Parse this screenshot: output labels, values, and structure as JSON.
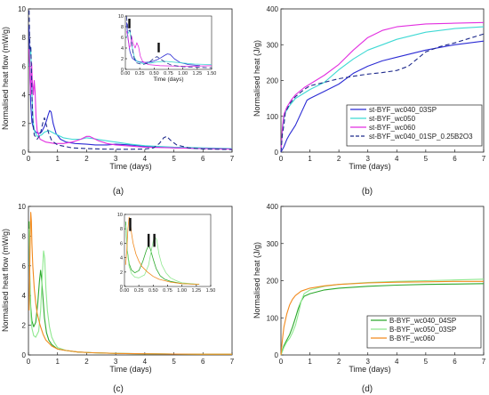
{
  "panels": [
    {
      "id": "a",
      "panel_label": "(a)",
      "chart_data": {
        "type": "line",
        "xlabel": "Time (days)",
        "ylabel": "Normalised heat flow (mW/g)",
        "xlim": [
          0,
          7
        ],
        "ylim": [
          0,
          10
        ],
        "xticks": [
          0,
          1,
          2,
          3,
          4,
          5,
          6,
          7
        ],
        "yticks": [
          0,
          2,
          4,
          6,
          8,
          10
        ],
        "series": [
          {
            "name": "st-BYF_wc040_03SP",
            "color": "#2b2bd4",
            "dash": "",
            "x": [
              0.02,
              0.05,
              0.08,
              0.12,
              0.18,
              0.25,
              0.35,
              0.45,
              0.55,
              0.62,
              0.68,
              0.73,
              0.78,
              0.85,
              0.95,
              1.1,
              1.3,
              1.6,
              2.0,
              2.3,
              2.7,
              3.0,
              3.5,
              4.0,
              5.0,
              6.0,
              7.0
            ],
            "y": [
              8.8,
              5.5,
              3.3,
              2.1,
              1.6,
              1.4,
              1.3,
              1.4,
              1.8,
              2.2,
              2.6,
              2.9,
              2.8,
              2.0,
              1.3,
              0.9,
              0.7,
              0.6,
              0.55,
              0.5,
              0.5,
              0.55,
              0.5,
              0.4,
              0.3,
              0.25,
              0.22
            ]
          },
          {
            "name": "st-BYF_wc050",
            "color": "#3fd9d4",
            "dash": "",
            "x": [
              0.02,
              0.05,
              0.08,
              0.1,
              0.13,
              0.16,
              0.2,
              0.3,
              0.45,
              0.55,
              0.7,
              0.9,
              1.2,
              1.5,
              1.8,
              2.0,
              2.2,
              2.5,
              3.0,
              3.5,
              4.0,
              5.0,
              6.0,
              7.0
            ],
            "y": [
              6.0,
              6.8,
              7.3,
              5.5,
              3.5,
              2.2,
              1.5,
              1.1,
              1.2,
              1.4,
              1.5,
              1.3,
              1.0,
              0.9,
              0.9,
              1.0,
              0.95,
              0.85,
              0.7,
              0.55,
              0.45,
              0.35,
              0.3,
              0.25
            ]
          },
          {
            "name": "st-BYF_wc060",
            "color": "#e22fe0",
            "dash": "",
            "x": [
              0.02,
              0.05,
              0.07,
              0.09,
              0.11,
              0.13,
              0.17,
              0.2,
              0.23,
              0.26,
              0.3,
              0.4,
              0.6,
              0.9,
              1.2,
              1.5,
              1.8,
              2.0,
              2.1,
              2.2,
              2.4,
              2.7,
              3.0,
              4.0,
              5.0,
              6.0,
              7.0
            ],
            "y": [
              7.2,
              5.8,
              4.0,
              4.5,
              6.2,
              5.0,
              4.0,
              5.0,
              4.2,
              2.5,
              1.5,
              0.9,
              0.7,
              0.6,
              0.6,
              0.7,
              0.9,
              1.1,
              1.1,
              1.0,
              0.8,
              0.6,
              0.5,
              0.35,
              0.3,
              0.25,
              0.22
            ]
          },
          {
            "name": "st-BYF_wc040_01SP_0.25B2O3",
            "color": "#1e2a8c",
            "dash": "5,3",
            "x": [
              0.02,
              0.04,
              0.06,
              0.08,
              0.1,
              0.12,
              0.15,
              0.2,
              0.3,
              0.4,
              0.5,
              0.55,
              0.6,
              0.7,
              0.8,
              1.0,
              1.5,
              2.0,
              2.5,
              3.0,
              3.5,
              4.0,
              4.3,
              4.5,
              4.65,
              4.75,
              4.9,
              5.1,
              5.5,
              6.0,
              7.0
            ],
            "y": [
              9.9,
              8.0,
              7.2,
              7.4,
              6.0,
              4.0,
              2.2,
              1.2,
              0.9,
              1.2,
              2.1,
              2.4,
              2.0,
              1.3,
              0.8,
              0.5,
              0.3,
              0.25,
              0.22,
              0.2,
              0.2,
              0.22,
              0.3,
              0.6,
              1.0,
              1.1,
              0.8,
              0.5,
              0.3,
              0.22,
              0.18
            ]
          }
        ],
        "inset": {
          "xlim": [
            0,
            1.5
          ],
          "ylim": [
            0,
            10
          ],
          "xticks": [
            0.0,
            0.25,
            0.5,
            0.75,
            1.0,
            1.25,
            1.5
          ],
          "yticks": [
            0,
            2,
            4,
            6,
            8,
            10
          ],
          "xtick_labels": [
            "0.00",
            "0.25",
            "0.50",
            "0.75",
            "1.00",
            "1.25",
            "1.50"
          ],
          "xlabel": "Time (days)",
          "markers": [
            0.07,
            0.58
          ]
        }
      }
    },
    {
      "id": "b",
      "panel_label": "(b)",
      "chart_data": {
        "type": "line",
        "xlabel": "Time (days)",
        "ylabel": "Normalised heat (J/g)",
        "xlim": [
          0,
          7
        ],
        "ylim": [
          0,
          400
        ],
        "xticks": [
          0,
          1,
          2,
          3,
          4,
          5,
          6,
          7
        ],
        "yticks": [
          0,
          100,
          200,
          300,
          400
        ],
        "legend_position": "bottom-right",
        "series": [
          {
            "name": "st-BYF_wc040_03SP",
            "color": "#2b2bd4",
            "dash": "",
            "x": [
              0,
              0.1,
              0.2,
              0.3,
              0.5,
              0.7,
              0.9,
              1.0,
              1.5,
              2.0,
              2.5,
              3.0,
              3.5,
              4.0,
              5.0,
              6.0,
              7.0
            ],
            "y": [
              0,
              15,
              35,
              50,
              75,
              110,
              145,
              150,
              170,
              190,
              220,
              240,
              255,
              265,
              285,
              300,
              310
            ]
          },
          {
            "name": "st-BYF_wc050",
            "color": "#3fd9d4",
            "dash": "",
            "x": [
              0,
              0.05,
              0.1,
              0.15,
              0.3,
              0.5,
              0.8,
              1.0,
              1.5,
              2.0,
              2.5,
              3.0,
              3.5,
              4.0,
              5.0,
              6.0,
              7.0
            ],
            "y": [
              0,
              60,
              95,
              110,
              130,
              150,
              165,
              175,
              195,
              230,
              260,
              285,
              300,
              315,
              335,
              345,
              350
            ]
          },
          {
            "name": "st-BYF_wc060",
            "color": "#e22fe0",
            "dash": "",
            "x": [
              0,
              0.05,
              0.1,
              0.2,
              0.35,
              0.5,
              0.8,
              1.0,
              1.5,
              2.0,
              2.5,
              3.0,
              3.5,
              4.0,
              5.0,
              6.0,
              7.0
            ],
            "y": [
              0,
              70,
              105,
              125,
              145,
              160,
              180,
              190,
              215,
              245,
              285,
              320,
              340,
              350,
              358,
              360,
              362
            ]
          },
          {
            "name": "st-BYF_wc040_01SP_0.25B2O3",
            "color": "#1e2a8c",
            "dash": "5,3",
            "x": [
              0,
              0.05,
              0.1,
              0.15,
              0.3,
              0.5,
              0.8,
              1.0,
              1.5,
              2.0,
              2.5,
              3.0,
              3.5,
              4.0,
              4.4,
              4.7,
              5.0,
              5.5,
              6.0,
              7.0
            ],
            "y": [
              0,
              50,
              75,
              110,
              135,
              155,
              175,
              185,
              195,
              205,
              212,
              218,
              222,
              228,
              240,
              260,
              280,
              295,
              305,
              330
            ]
          }
        ]
      }
    },
    {
      "id": "c",
      "panel_label": "(c)",
      "chart_data": {
        "type": "line",
        "xlabel": "Time (days)",
        "ylabel": "Normalised heat flow (mW/g)",
        "xlim": [
          0,
          7
        ],
        "ylim": [
          0,
          10
        ],
        "xticks": [
          0,
          1,
          2,
          3,
          4,
          5,
          6,
          7
        ],
        "yticks": [
          0,
          2,
          4,
          6,
          8,
          10
        ],
        "series": [
          {
            "name": "B-BYF_wc040_04SP",
            "color": "#2ca82c",
            "dash": "",
            "x": [
              0.02,
              0.05,
              0.08,
              0.12,
              0.18,
              0.25,
              0.32,
              0.38,
              0.42,
              0.45,
              0.5,
              0.55,
              0.62,
              0.7,
              0.8,
              1.0,
              1.3,
              1.7,
              2.2,
              3.0,
              4.0,
              5.0,
              6.0,
              7.0
            ],
            "y": [
              9.0,
              5.0,
              3.2,
              2.3,
              1.9,
              2.2,
              3.5,
              5.0,
              5.7,
              5.2,
              3.8,
              2.5,
              1.5,
              1.0,
              0.7,
              0.4,
              0.3,
              0.2,
              0.15,
              0.1,
              0.08,
              0.06,
              0.05,
              0.05
            ]
          },
          {
            "name": "B-BYF_wc050_03SP",
            "color": "#8ee88e",
            "dash": "",
            "x": [
              0.02,
              0.05,
              0.08,
              0.12,
              0.18,
              0.25,
              0.35,
              0.42,
              0.48,
              0.52,
              0.56,
              0.6,
              0.65,
              0.72,
              0.8,
              0.9,
              1.0,
              1.3,
              1.7,
              2.2,
              3.0,
              4.0,
              5.0,
              6.0,
              7.0
            ],
            "y": [
              8.5,
              4.8,
              2.8,
              1.8,
              1.3,
              1.2,
              1.6,
              3.0,
              5.5,
              7.0,
              6.5,
              4.5,
              3.0,
              1.9,
              1.2,
              0.8,
              0.5,
              0.3,
              0.2,
              0.15,
              0.1,
              0.08,
              0.06,
              0.05,
              0.05
            ]
          },
          {
            "name": "B-BYF_wc060",
            "color": "#f28a1e",
            "dash": "",
            "x": [
              0.02,
              0.04,
              0.06,
              0.08,
              0.1,
              0.12,
              0.15,
              0.2,
              0.25,
              0.3,
              0.4,
              0.5,
              0.6,
              0.8,
              1.0,
              1.3,
              1.7,
              2.2,
              3.0,
              4.0,
              5.0,
              6.0,
              7.0
            ],
            "y": [
              3.0,
              5.0,
              8.0,
              9.6,
              9.0,
              7.5,
              6.0,
              4.5,
              3.5,
              2.8,
              2.0,
              1.4,
              1.0,
              0.6,
              0.4,
              0.3,
              0.2,
              0.15,
              0.1,
              0.08,
              0.06,
              0.05,
              0.05
            ]
          }
        ],
        "inset": {
          "xlim": [
            0,
            1.5
          ],
          "ylim": [
            0,
            10
          ],
          "xticks": [
            0.0,
            0.25,
            0.5,
            0.75,
            1.0,
            1.25,
            1.5
          ],
          "yticks": [
            0,
            2,
            4,
            6,
            8,
            10
          ],
          "xtick_labels": [
            "0.00",
            "0.25",
            "0.50",
            "0.75",
            "1.00",
            "1.25",
            "1.50"
          ],
          "markers": [
            0.1,
            0.42,
            0.52
          ]
        }
      }
    },
    {
      "id": "d",
      "panel_label": "(d)",
      "chart_data": {
        "type": "line",
        "xlabel": "Time (days)",
        "ylabel": "Normalised heat (J/g)",
        "xlim": [
          0,
          7
        ],
        "ylim": [
          0,
          400
        ],
        "xticks": [
          0,
          1,
          2,
          3,
          4,
          5,
          6,
          7
        ],
        "yticks": [
          0,
          100,
          200,
          300,
          400
        ],
        "legend_position": "bottom-right",
        "series": [
          {
            "name": "B-BYF_wc040_04SP",
            "color": "#2ca82c",
            "dash": "",
            "x": [
              0,
              0.1,
              0.2,
              0.3,
              0.4,
              0.5,
              0.6,
              0.7,
              0.8,
              1.0,
              1.5,
              2.0,
              3.0,
              4.0,
              5.0,
              6.0,
              7.0
            ],
            "y": [
              0,
              25,
              40,
              55,
              75,
              100,
              125,
              145,
              158,
              165,
              175,
              180,
              185,
              188,
              190,
              191,
              192
            ]
          },
          {
            "name": "B-BYF_wc050_03SP",
            "color": "#8ee88e",
            "dash": "",
            "x": [
              0,
              0.1,
              0.2,
              0.3,
              0.4,
              0.5,
              0.6,
              0.7,
              0.8,
              1.0,
              1.5,
              2.0,
              3.0,
              4.0,
              5.0,
              6.0,
              7.0
            ],
            "y": [
              0,
              20,
              35,
              45,
              60,
              80,
              110,
              145,
              165,
              175,
              185,
              190,
              195,
              198,
              200,
              202,
              204
            ]
          },
          {
            "name": "B-BYF_wc060",
            "color": "#f28a1e",
            "dash": "",
            "x": [
              0,
              0.05,
              0.1,
              0.2,
              0.3,
              0.4,
              0.5,
              0.7,
              1.0,
              1.5,
              2.0,
              3.0,
              4.0,
              5.0,
              6.0,
              7.0
            ],
            "y": [
              0,
              40,
              75,
              110,
              135,
              150,
              160,
              172,
              180,
              186,
              190,
              194,
              196,
              197,
              198,
              198
            ]
          }
        ]
      }
    }
  ]
}
